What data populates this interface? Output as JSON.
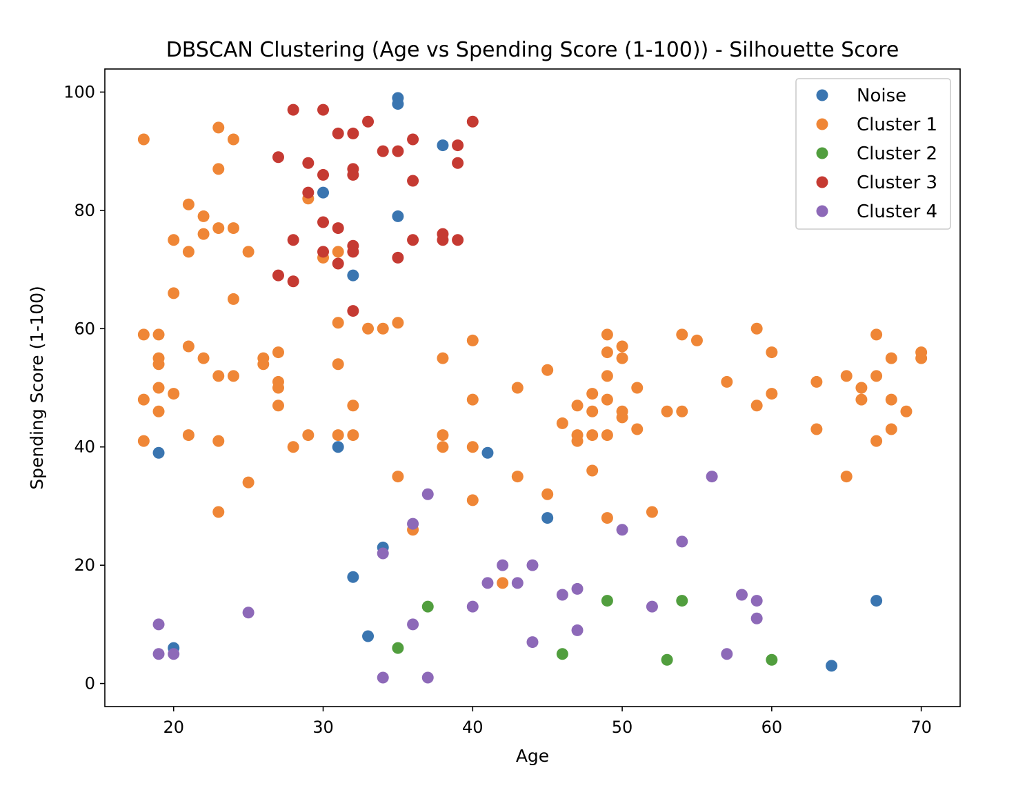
{
  "chart_data": {
    "type": "scatter",
    "title": "DBSCAN Clustering (Age vs Spending Score (1-100)) - Silhouette Score",
    "xlabel": "Age",
    "ylabel": "Spending Score (1-100)",
    "xlim": [
      15.4,
      72.6
    ],
    "ylim": [
      -3.9,
      103.9
    ],
    "xticks": [
      20,
      30,
      40,
      50,
      60,
      70
    ],
    "yticks": [
      0,
      20,
      40,
      60,
      80,
      100
    ],
    "grid": false,
    "legend_position": "top-right",
    "series": [
      {
        "name": "Noise",
        "color": "#3a75b0",
        "points": [
          [
            35,
            99
          ],
          [
            35,
            98
          ],
          [
            38,
            91
          ],
          [
            30,
            83
          ],
          [
            35,
            79
          ],
          [
            32,
            69
          ],
          [
            19,
            39
          ],
          [
            31,
            40
          ],
          [
            41,
            39
          ],
          [
            45,
            28
          ],
          [
            34,
            23
          ],
          [
            32,
            18
          ],
          [
            33,
            8
          ],
          [
            20,
            6
          ],
          [
            67,
            14
          ],
          [
            64,
            3
          ]
        ]
      },
      {
        "name": "Cluster 1",
        "color": "#ef8636",
        "points": [
          [
            18,
            92
          ],
          [
            23,
            94
          ],
          [
            24,
            92
          ],
          [
            23,
            87
          ],
          [
            21,
            81
          ],
          [
            22,
            79
          ],
          [
            23,
            77
          ],
          [
            24,
            77
          ],
          [
            22,
            76
          ],
          [
            20,
            75
          ],
          [
            21,
            73
          ],
          [
            25,
            73
          ],
          [
            29,
            82
          ],
          [
            30,
            72
          ],
          [
            31,
            73
          ],
          [
            20,
            66
          ],
          [
            24,
            65
          ],
          [
            18,
            59
          ],
          [
            19,
            59
          ],
          [
            21,
            57
          ],
          [
            22,
            55
          ],
          [
            19,
            55
          ],
          [
            19,
            54
          ],
          [
            26,
            55
          ],
          [
            26,
            54
          ],
          [
            27,
            56
          ],
          [
            23,
            52
          ],
          [
            24,
            52
          ],
          [
            27,
            51
          ],
          [
            27,
            50
          ],
          [
            19,
            50
          ],
          [
            20,
            49
          ],
          [
            18,
            48
          ],
          [
            27,
            47
          ],
          [
            19,
            46
          ],
          [
            18,
            41
          ],
          [
            21,
            42
          ],
          [
            23,
            41
          ],
          [
            28,
            40
          ],
          [
            29,
            42
          ],
          [
            25,
            34
          ],
          [
            23,
            29
          ],
          [
            31,
            61
          ],
          [
            33,
            60
          ],
          [
            34,
            60
          ],
          [
            35,
            61
          ],
          [
            31,
            54
          ],
          [
            32,
            47
          ],
          [
            31,
            42
          ],
          [
            32,
            42
          ],
          [
            35,
            35
          ],
          [
            36,
            26
          ],
          [
            38,
            55
          ],
          [
            38,
            42
          ],
          [
            38,
            40
          ],
          [
            40,
            58
          ],
          [
            40,
            48
          ],
          [
            40,
            40
          ],
          [
            40,
            31
          ],
          [
            42,
            17
          ],
          [
            43,
            50
          ],
          [
            43,
            35
          ],
          [
            45,
            53
          ],
          [
            45,
            32
          ],
          [
            46,
            44
          ],
          [
            47,
            47
          ],
          [
            47,
            42
          ],
          [
            47,
            41
          ],
          [
            48,
            49
          ],
          [
            48,
            46
          ],
          [
            48,
            42
          ],
          [
            48,
            36
          ],
          [
            49,
            59
          ],
          [
            49,
            56
          ],
          [
            49,
            52
          ],
          [
            49,
            48
          ],
          [
            49,
            42
          ],
          [
            49,
            28
          ],
          [
            50,
            57
          ],
          [
            50,
            55
          ],
          [
            50,
            46
          ],
          [
            50,
            45
          ],
          [
            51,
            50
          ],
          [
            51,
            43
          ],
          [
            52,
            29
          ],
          [
            53,
            46
          ],
          [
            54,
            59
          ],
          [
            54,
            46
          ],
          [
            55,
            58
          ],
          [
            57,
            51
          ],
          [
            59,
            60
          ],
          [
            59,
            47
          ],
          [
            60,
            56
          ],
          [
            60,
            49
          ],
          [
            63,
            51
          ],
          [
            63,
            43
          ],
          [
            65,
            52
          ],
          [
            65,
            35
          ],
          [
            66,
            50
          ],
          [
            66,
            48
          ],
          [
            67,
            59
          ],
          [
            67,
            52
          ],
          [
            67,
            41
          ],
          [
            68,
            55
          ],
          [
            68,
            48
          ],
          [
            68,
            43
          ],
          [
            69,
            46
          ],
          [
            70,
            56
          ],
          [
            70,
            55
          ]
        ]
      },
      {
        "name": "Cluster 2",
        "color": "#519e3e",
        "points": [
          [
            37,
            13
          ],
          [
            35,
            6
          ],
          [
            46,
            5
          ],
          [
            49,
            14
          ],
          [
            53,
            4
          ],
          [
            54,
            14
          ],
          [
            60,
            4
          ]
        ]
      },
      {
        "name": "Cluster 3",
        "color": "#c53a32",
        "points": [
          [
            28,
            97
          ],
          [
            30,
            97
          ],
          [
            31,
            93
          ],
          [
            32,
            93
          ],
          [
            33,
            95
          ],
          [
            27,
            89
          ],
          [
            29,
            88
          ],
          [
            30,
            86
          ],
          [
            32,
            87
          ],
          [
            32,
            86
          ],
          [
            34,
            90
          ],
          [
            35,
            90
          ],
          [
            36,
            92
          ],
          [
            36,
            85
          ],
          [
            39,
            91
          ],
          [
            39,
            88
          ],
          [
            40,
            95
          ],
          [
            29,
            83
          ],
          [
            28,
            75
          ],
          [
            30,
            78
          ],
          [
            30,
            73
          ],
          [
            31,
            77
          ],
          [
            31,
            71
          ],
          [
            32,
            74
          ],
          [
            32,
            73
          ],
          [
            27,
            69
          ],
          [
            28,
            68
          ],
          [
            35,
            72
          ],
          [
            36,
            75
          ],
          [
            38,
            76
          ],
          [
            38,
            75
          ],
          [
            39,
            75
          ],
          [
            32,
            63
          ]
        ]
      },
      {
        "name": "Cluster 4",
        "color": "#8d69b8",
        "points": [
          [
            19,
            10
          ],
          [
            19,
            5
          ],
          [
            20,
            5
          ],
          [
            25,
            12
          ],
          [
            34,
            22
          ],
          [
            34,
            1
          ],
          [
            36,
            27
          ],
          [
            36,
            10
          ],
          [
            37,
            32
          ],
          [
            37,
            1
          ],
          [
            40,
            13
          ],
          [
            41,
            17
          ],
          [
            42,
            20
          ],
          [
            43,
            17
          ],
          [
            44,
            20
          ],
          [
            44,
            7
          ],
          [
            46,
            15
          ],
          [
            47,
            16
          ],
          [
            47,
            9
          ],
          [
            50,
            26
          ],
          [
            52,
            13
          ],
          [
            54,
            24
          ],
          [
            56,
            35
          ],
          [
            57,
            5
          ],
          [
            58,
            15
          ],
          [
            59,
            14
          ],
          [
            59,
            11
          ]
        ]
      }
    ]
  }
}
